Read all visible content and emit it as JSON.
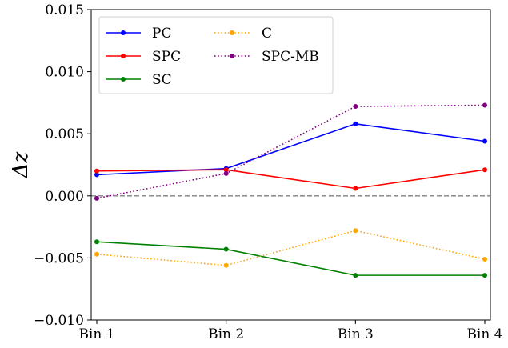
{
  "chart_data": {
    "type": "line",
    "categories": [
      "Bin 1",
      "Bin 2",
      "Bin 3",
      "Bin 4"
    ],
    "ylabel": "Δz",
    "ylim": [
      -0.01,
      0.015
    ],
    "yticks": [
      -0.01,
      -0.005,
      0.0,
      0.005,
      0.01,
      0.015
    ],
    "ytick_labels": [
      "−0.010",
      "−0.005",
      "0.000",
      "0.005",
      "0.010",
      "0.015"
    ],
    "reference_line": {
      "y": 0,
      "style": "dashed",
      "color": "#808080"
    },
    "grid": false,
    "legend": {
      "placement": "top-left",
      "columns": 2
    },
    "series": [
      {
        "name": "PC",
        "color": "#0000ff",
        "style": "solid",
        "values": [
          0.0017,
          0.0022,
          0.0058,
          0.0044
        ]
      },
      {
        "name": "SPC",
        "color": "#ff0000",
        "style": "solid",
        "values": [
          0.002,
          0.0021,
          0.0006,
          0.0021
        ]
      },
      {
        "name": "SC",
        "color": "#008000",
        "style": "solid",
        "values": [
          -0.0037,
          -0.0043,
          -0.0064,
          -0.0064
        ]
      },
      {
        "name": "C",
        "color": "#ffa500",
        "style": "dotted",
        "values": [
          -0.0047,
          -0.0056,
          -0.0028,
          -0.0051
        ]
      },
      {
        "name": "SPC-MB",
        "color": "#800080",
        "style": "dotted",
        "values": [
          -0.0002,
          0.0018,
          0.0072,
          0.0073
        ]
      }
    ]
  }
}
